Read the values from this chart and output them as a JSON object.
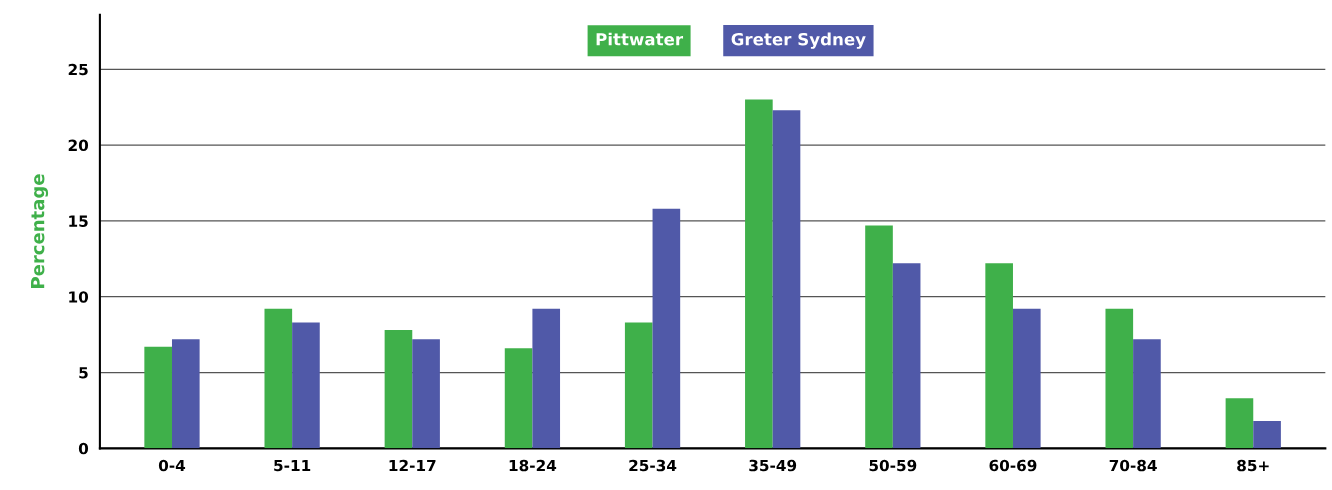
{
  "chart_data": {
    "type": "bar",
    "ylabel": "Percentage",
    "categories": [
      "0-4",
      "5-11",
      "12-17",
      "18-24",
      "25-34",
      "35-49",
      "50-59",
      "60-69",
      "70-84",
      "85+"
    ],
    "series": [
      {
        "name": "Pittwater",
        "color": "#3fb04a",
        "values": [
          6.7,
          9.2,
          7.8,
          6.6,
          8.3,
          23.0,
          14.7,
          12.2,
          9.2,
          3.3
        ]
      },
      {
        "name": "Greter Sydney",
        "color": "#5059a8",
        "values": [
          7.2,
          8.3,
          7.2,
          9.2,
          15.8,
          22.3,
          12.2,
          9.2,
          7.2,
          1.8
        ]
      }
    ],
    "ylim": [
      0,
      28.6
    ],
    "yticks": [
      0,
      5,
      10,
      15,
      20,
      25
    ],
    "grid": "y",
    "legend": "top"
  }
}
